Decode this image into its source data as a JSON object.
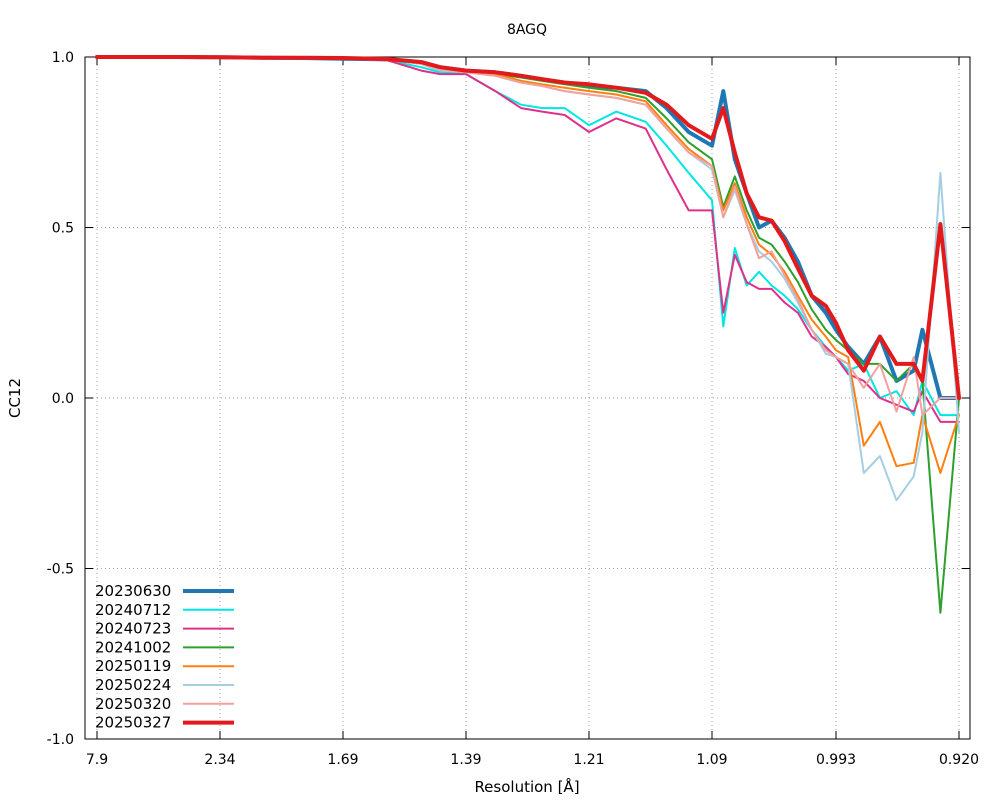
{
  "chart_data": {
    "type": "line",
    "title": "8AGQ",
    "xlabel": "Resolution [Å]",
    "ylabel": "CC12",
    "ylim": [
      -1.0,
      1.0
    ],
    "x_ticks": [
      "7.9",
      "2.34",
      "1.69",
      "1.39",
      "1.21",
      "1.09",
      "0.993",
      "0.920"
    ],
    "y_ticks": [
      "1.0",
      "0.5",
      "0.0",
      "-0.5",
      "-1.0"
    ],
    "grid": true,
    "legend_position": "bottom-left",
    "x": [
      7.9,
      2.84,
      2.34,
      2.04,
      1.84,
      1.69,
      1.56,
      1.48,
      1.44,
      1.39,
      1.34,
      1.3,
      1.27,
      1.24,
      1.21,
      1.18,
      1.15,
      1.13,
      1.11,
      1.09,
      1.08,
      1.07,
      1.06,
      1.05,
      1.04,
      1.03,
      1.02,
      1.01,
      1.0,
      0.993,
      0.985,
      0.975,
      0.965,
      0.955,
      0.945,
      0.94,
      0.93,
      0.92
    ],
    "series": [
      {
        "name": "20230630",
        "color": "#1f77b4",
        "width": 4,
        "values": [
          1.0,
          1.0,
          0.999,
          0.998,
          0.997,
          0.995,
          0.993,
          0.985,
          0.97,
          0.96,
          0.955,
          0.945,
          0.935,
          0.925,
          0.915,
          0.91,
          0.9,
          0.85,
          0.78,
          0.74,
          0.9,
          0.7,
          0.6,
          0.5,
          0.52,
          0.47,
          0.4,
          0.3,
          0.25,
          0.2,
          0.15,
          0.1,
          0.18,
          0.05,
          0.08,
          0.2,
          0.0,
          0.0
        ]
      },
      {
        "name": "20240712",
        "color": "#00e5e5",
        "width": 2,
        "values": [
          1.0,
          1.0,
          0.999,
          0.998,
          0.997,
          0.995,
          0.99,
          0.97,
          0.955,
          0.95,
          0.9,
          0.86,
          0.85,
          0.85,
          0.8,
          0.84,
          0.81,
          0.74,
          0.66,
          0.58,
          0.21,
          0.44,
          0.33,
          0.37,
          0.33,
          0.3,
          0.26,
          0.2,
          0.15,
          0.12,
          0.08,
          0.1,
          0.0,
          0.02,
          -0.05,
          0.05,
          -0.05,
          -0.05
        ]
      },
      {
        "name": "20240723",
        "color": "#e0318a",
        "width": 2,
        "values": [
          1.0,
          1.0,
          0.999,
          0.998,
          0.997,
          0.995,
          0.99,
          0.96,
          0.95,
          0.95,
          0.9,
          0.85,
          0.84,
          0.83,
          0.78,
          0.82,
          0.79,
          0.67,
          0.55,
          0.55,
          0.25,
          0.42,
          0.34,
          0.32,
          0.32,
          0.28,
          0.25,
          0.18,
          0.15,
          0.12,
          0.07,
          0.05,
          0.0,
          -0.02,
          -0.04,
          0.02,
          -0.07,
          -0.07
        ]
      },
      {
        "name": "20241002",
        "color": "#2ca02c",
        "width": 2,
        "values": [
          1.0,
          1.0,
          0.999,
          0.998,
          0.997,
          0.995,
          0.993,
          0.98,
          0.96,
          0.955,
          0.95,
          0.94,
          0.93,
          0.92,
          0.91,
          0.9,
          0.88,
          0.82,
          0.75,
          0.7,
          0.56,
          0.65,
          0.55,
          0.47,
          0.45,
          0.4,
          0.34,
          0.26,
          0.2,
          0.17,
          0.14,
          0.1,
          0.1,
          0.05,
          0.1,
          0.05,
          -0.63,
          0.0
        ]
      },
      {
        "name": "20250119",
        "color": "#ff7f0e",
        "width": 2,
        "values": [
          1.0,
          1.0,
          0.999,
          0.998,
          0.997,
          0.995,
          0.993,
          0.98,
          0.96,
          0.955,
          0.95,
          0.93,
          0.92,
          0.91,
          0.9,
          0.89,
          0.87,
          0.8,
          0.73,
          0.68,
          0.55,
          0.63,
          0.53,
          0.45,
          0.42,
          0.37,
          0.3,
          0.23,
          0.18,
          0.14,
          0.12,
          -0.14,
          -0.07,
          -0.2,
          -0.19,
          -0.05,
          -0.22,
          -0.05
        ]
      },
      {
        "name": "20250224",
        "color": "#a6cee3",
        "width": 2,
        "values": [
          1.0,
          1.0,
          0.999,
          0.998,
          0.997,
          0.995,
          0.993,
          0.98,
          0.96,
          0.955,
          0.945,
          0.925,
          0.915,
          0.9,
          0.89,
          0.88,
          0.86,
          0.79,
          0.72,
          0.67,
          0.53,
          0.61,
          0.51,
          0.43,
          0.4,
          0.35,
          0.28,
          0.2,
          0.13,
          0.12,
          0.1,
          -0.22,
          -0.17,
          -0.3,
          -0.23,
          -0.1,
          0.66,
          -0.1
        ]
      },
      {
        "name": "20250320",
        "color": "#f4a09c",
        "width": 2,
        "values": [
          1.0,
          1.0,
          0.999,
          0.998,
          0.997,
          0.995,
          0.993,
          0.98,
          0.965,
          0.955,
          0.945,
          0.925,
          0.915,
          0.9,
          0.89,
          0.88,
          0.86,
          0.79,
          0.72,
          0.68,
          0.53,
          0.62,
          0.51,
          0.41,
          0.43,
          0.36,
          0.29,
          0.2,
          0.14,
          0.12,
          0.1,
          0.03,
          0.1,
          -0.04,
          0.12,
          -0.05,
          0.0,
          0.0
        ]
      },
      {
        "name": "20250327",
        "color": "#e31a1c",
        "width": 4,
        "values": [
          1.0,
          1.0,
          0.999,
          0.998,
          0.998,
          0.997,
          0.994,
          0.985,
          0.97,
          0.96,
          0.955,
          0.945,
          0.935,
          0.925,
          0.92,
          0.91,
          0.895,
          0.86,
          0.8,
          0.76,
          0.85,
          0.72,
          0.6,
          0.53,
          0.52,
          0.46,
          0.38,
          0.3,
          0.27,
          0.22,
          0.14,
          0.08,
          0.18,
          0.1,
          0.1,
          0.05,
          0.51,
          0.0
        ]
      }
    ]
  }
}
